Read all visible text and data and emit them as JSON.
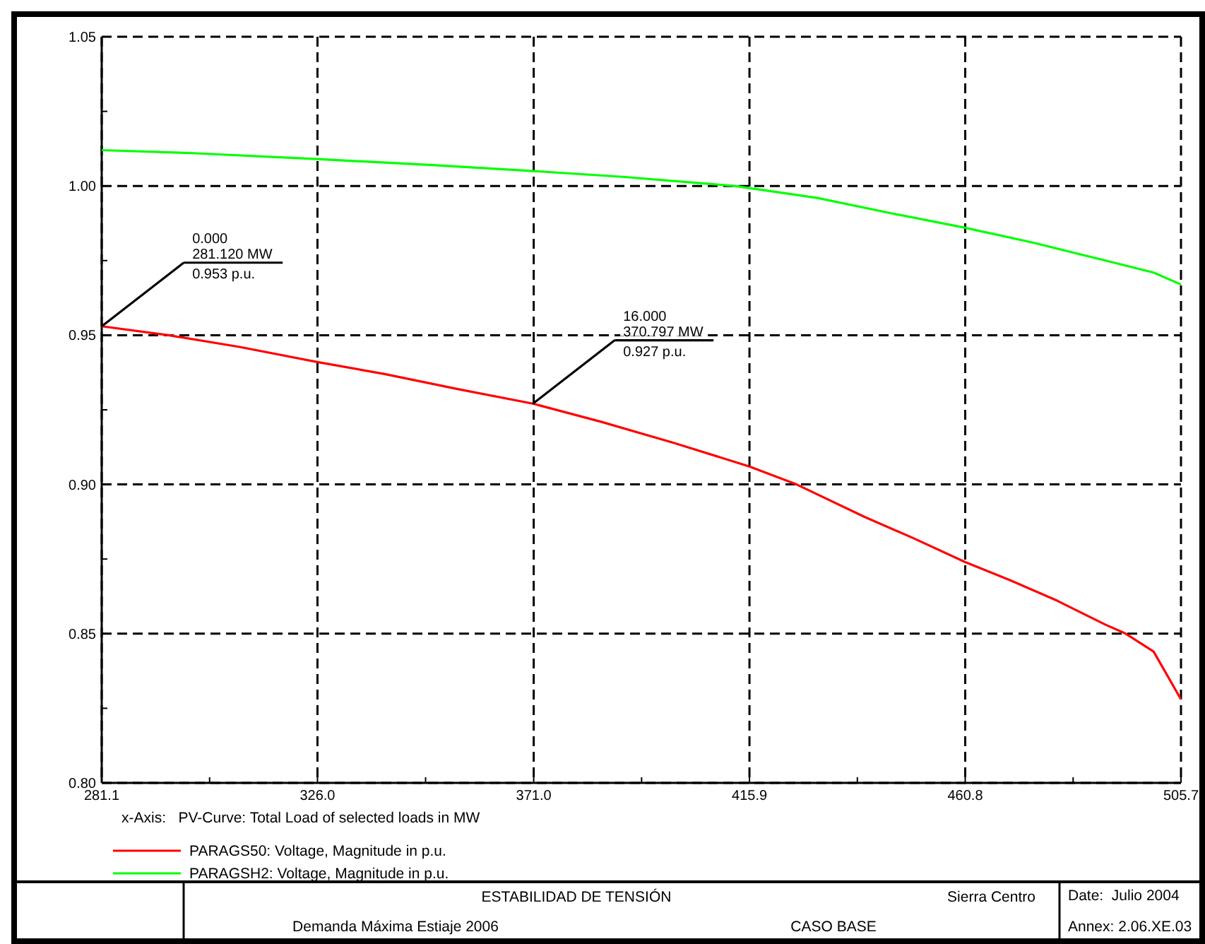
{
  "chart_data": {
    "type": "line",
    "xlabel": "x-Axis:   PV-Curve: Total Load of selected loads in MW",
    "xlim": [
      281.1,
      505.7
    ],
    "xticks": [
      281.1,
      {
        "value": 303.55,
        "label": null
      },
      {
        "value": 326.0,
        "label": "326.0"
      },
      {
        "value": 348.5,
        "label": null
      },
      {
        "value": 371.0,
        "label": "371.0"
      },
      {
        "value": 393.45,
        "label": null
      },
      415.9,
      {
        "value": 438.35,
        "label": null
      },
      460.8,
      {
        "value": 483.25,
        "label": null
      },
      505.7
    ],
    "ylim": [
      0.8,
      1.05
    ],
    "yticks": [
      {
        "value": 0.8,
        "label": "0.80"
      },
      {
        "value": 0.825,
        "label": null
      },
      {
        "value": 0.85,
        "label": "0.85"
      },
      {
        "value": 0.875,
        "label": null
      },
      {
        "value": 0.9,
        "label": "0.90"
      },
      {
        "value": 0.925,
        "label": null
      },
      {
        "value": 0.95,
        "label": "0.95"
      },
      {
        "value": 0.975,
        "label": null
      },
      {
        "value": 1.0,
        "label": "1.00"
      },
      {
        "value": 1.025,
        "label": null
      },
      {
        "value": 1.05,
        "label": "1.05"
      }
    ],
    "grid": true,
    "line_style": "solid",
    "marker": "none",
    "legend": "bottom",
    "series": [
      {
        "name": "PARAGS50: Voltage, Magnitude in p.u.",
        "color": "#ff0000",
        "x": [
          281.1,
          295,
          310,
          326,
          340,
          355,
          371,
          385,
          400,
          415.9,
          425.7,
          440,
          450,
          460.8,
          470,
          480,
          490,
          494.2,
          500,
          505.7
        ],
        "values": [
          0.953,
          0.95,
          0.946,
          0.941,
          0.937,
          0.932,
          0.927,
          0.921,
          0.914,
          0.906,
          0.9,
          0.889,
          0.882,
          0.874,
          0.868,
          0.861,
          0.853,
          0.85,
          0.844,
          0.828
        ]
      },
      {
        "name": "PARAGSH2: Voltage, Magnitude in p.u.",
        "color": "#00ff00",
        "x": [
          281.1,
          300,
          326,
          350,
          371,
          390,
          412.8,
          430,
          445,
          460.8,
          475,
          490,
          500,
          505.7
        ],
        "values": [
          1.012,
          1.011,
          1.009,
          1.007,
          1.005,
          1.003,
          1.0,
          0.996,
          0.991,
          0.986,
          0.981,
          0.975,
          0.971,
          0.967
        ]
      }
    ],
    "annotations": [
      {
        "text": "0.000\n281.120 MW\n0.953 p.u.",
        "x": 281.12,
        "y": 0.953
      },
      {
        "text": "16.000\n370.797 MW\n0.927 p.u.",
        "x": 370.797,
        "y": 0.927
      },
      "ESTABILIDAD DE TENSIÓN",
      "Demanda Máxima Estiaje 2006",
      "Sierra Centro",
      "CASO BASE",
      "Date:  Julio 2004",
      "Annex: 2.06.XE.03"
    ]
  }
}
